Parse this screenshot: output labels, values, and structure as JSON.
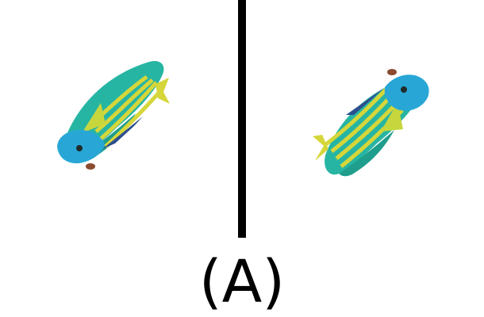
{
  "caption": "(A)",
  "colors": {
    "body": "#27b5a3",
    "body_shadow": "#1f9d8d",
    "head": "#28a7d6",
    "stripe": "#d5d63a",
    "fin": "#c7d63c",
    "fin_dark": "#2c4f8d",
    "eye": "#1e2b2b",
    "mouth": "#8a4b2f",
    "divider": "#000000"
  },
  "left_fish": {
    "icon": "fish-icon",
    "orientation": "head-lower-left"
  },
  "right_fish": {
    "icon": "fish-icon",
    "orientation": "head-upper-right"
  }
}
